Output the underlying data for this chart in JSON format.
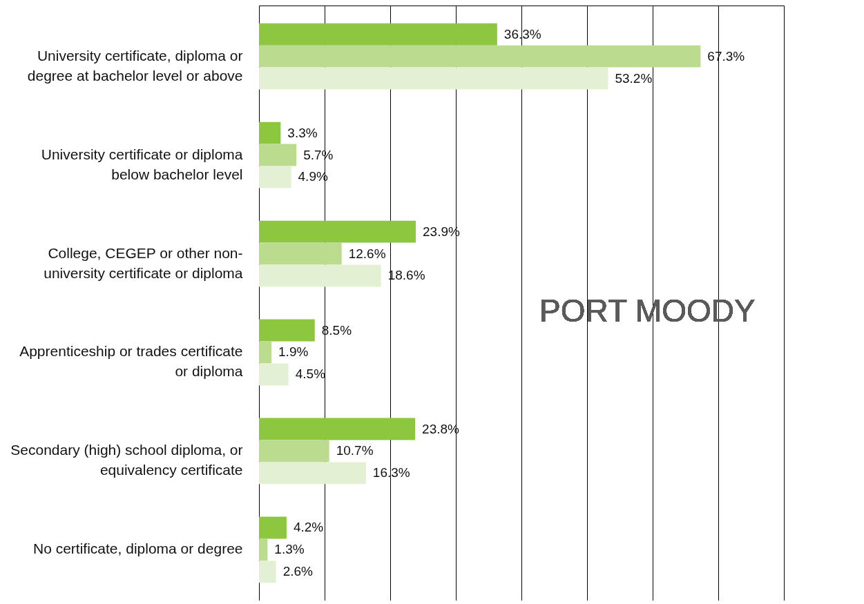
{
  "chart_data": {
    "type": "bar",
    "orientation": "horizontal",
    "categories": [
      "University certificate, diploma or degree at bachelor level or above",
      "University certificate or diploma below bachelor level",
      "College, CEGEP or other non-university certificate or diploma",
      "Apprenticeship or trades certificate or diploma",
      "Secondary (high) school diploma, or equivalency certificate",
      "No certificate, diploma or degree"
    ],
    "series": [
      {
        "color": "#8dc63f",
        "values": [
          36.3,
          3.3,
          23.9,
          8.5,
          23.8,
          4.2
        ],
        "value_labels": [
          "36.3%",
          "3.3%",
          "23.9%",
          "8.5%",
          "23.8%",
          "4.2%"
        ]
      },
      {
        "color": "#bbdc8f",
        "values": [
          67.3,
          5.7,
          12.6,
          1.9,
          10.7,
          1.3
        ],
        "value_labels": [
          "67.3%",
          "5.7%",
          "12.6%",
          "1.9%",
          "10.7%",
          "1.3%"
        ]
      },
      {
        "color": "#e3f0d4",
        "values": [
          53.2,
          4.9,
          18.6,
          4.5,
          16.3,
          2.6
        ],
        "value_labels": [
          "53.2%",
          "4.9%",
          "18.6%",
          "4.5%",
          "16.3%",
          "2.6%"
        ]
      }
    ],
    "xlim": [
      0,
      80
    ],
    "xticks": [
      {
        "value": 0,
        "label": null
      },
      {
        "value": 10,
        "label": null
      },
      {
        "value": 20,
        "label": null
      },
      {
        "value": 30,
        "label": null
      },
      {
        "value": 40,
        "label": null
      },
      {
        "value": 50,
        "label": null
      },
      {
        "value": 60,
        "label": null
      },
      {
        "value": 70,
        "label": null
      },
      {
        "value": 80,
        "label": null
      }
    ],
    "grid": "x",
    "tick_labels": "y",
    "legend": false,
    "annotations": [
      "PORT MOODY"
    ]
  }
}
